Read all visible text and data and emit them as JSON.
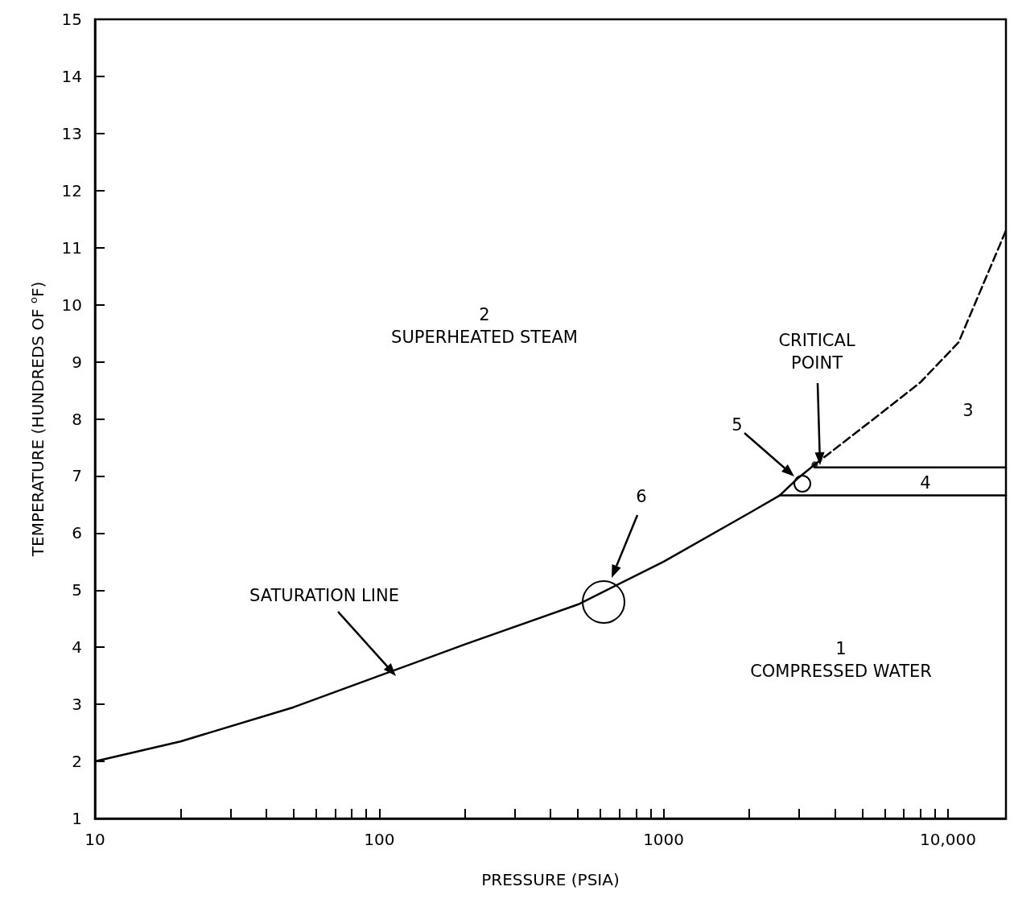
{
  "chart_data": {
    "type": "line",
    "xlabel": "PRESSURE (PSIA)",
    "ylabel": "TEMPERATURE (HUNDREDS OF $^{o}$F)",
    "log": "x",
    "grid": false,
    "xlim": [
      10,
      16000
    ],
    "ylim": [
      1,
      15
    ],
    "xticks": [
      10,
      {
        "value": 20,
        "label": null
      },
      {
        "value": 30,
        "label": null
      },
      {
        "value": 40,
        "label": null
      },
      {
        "value": 50,
        "label": null
      },
      {
        "value": 60,
        "label": null
      },
      {
        "value": 70,
        "label": null
      },
      {
        "value": 80,
        "label": null
      },
      {
        "value": 90,
        "label": null
      },
      100,
      {
        "value": 200,
        "label": null
      },
      {
        "value": 300,
        "label": null
      },
      {
        "value": 400,
        "label": null
      },
      {
        "value": 500,
        "label": null
      },
      {
        "value": 600,
        "label": null
      },
      {
        "value": 700,
        "label": null
      },
      {
        "value": 800,
        "label": null
      },
      {
        "value": 900,
        "label": null
      },
      1000,
      {
        "value": 2000,
        "label": null
      },
      {
        "value": 3000,
        "label": null
      },
      {
        "value": 4000,
        "label": null
      },
      {
        "value": 5000,
        "label": null
      },
      {
        "value": 6000,
        "label": null
      },
      {
        "value": 7000,
        "label": null
      },
      {
        "value": 8000,
        "label": null
      },
      {
        "value": 9000,
        "label": null
      },
      {
        "value": 10000,
        "label": "10,000"
      }
    ],
    "yticks": [
      1,
      2,
      3,
      4,
      5,
      6,
      7,
      8,
      9,
      10,
      11,
      12,
      13,
      14,
      15
    ],
    "series": [
      {
        "color": "#000000",
        "line_style": "solid",
        "x": [
          10,
          20,
          50,
          100,
          200,
          500,
          1000,
          2000,
          2560,
          2950,
          3400
        ],
        "values": [
          2.0,
          2.35,
          2.95,
          3.5,
          4.05,
          4.75,
          5.5,
          6.35,
          6.66,
          6.95,
          7.2
        ]
      },
      {
        "color": "#000000",
        "line_style": "dashed",
        "x": [
          3400,
          5750,
          8000,
          10900,
          16000
        ],
        "values": [
          7.2,
          8.08,
          8.64,
          9.34,
          11.3
        ]
      },
      {
        "color": "#000000",
        "line_style": "solid",
        "x": [
          3400,
          16000
        ],
        "values": [
          7.15,
          7.15
        ]
      },
      {
        "color": "#000000",
        "line_style": "solid",
        "x": [
          2560,
          16000
        ],
        "values": [
          6.66,
          6.66
        ]
      },
      {
        "type": "scatter",
        "color": "#000000",
        "marker": "circle",
        "x": [
          3400
        ],
        "values": [
          7.2
        ]
      }
    ],
    "annotations": [
      "SATURATION LINE",
      "2\nSUPERHEATED STEAM",
      "CRITICAL\nPOINT",
      "3",
      "4",
      "5",
      "6",
      "1\nCOMPRESSED WATER"
    ]
  }
}
